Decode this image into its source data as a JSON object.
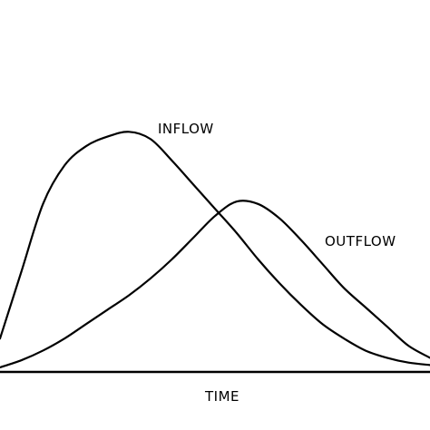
{
  "chart_data": {
    "type": "line",
    "title": "",
    "xlabel": "TIME",
    "ylabel": "",
    "grid": false,
    "legend": "none",
    "xlim": [
      0,
      100
    ],
    "ylim": [
      0,
      100
    ],
    "x": [
      0,
      5,
      10,
      15,
      20,
      25,
      30,
      35,
      40,
      45,
      50,
      55,
      60,
      65,
      70,
      75,
      80,
      85,
      90,
      95,
      100
    ],
    "series": [
      {
        "name": "INFLOW",
        "color": "#000000",
        "values": [
          12,
          40,
          68,
          84,
          92,
          96,
          98,
          95,
          86,
          76,
          66,
          56,
          45,
          35,
          26,
          18,
          12,
          7,
          4,
          2,
          1
        ]
      },
      {
        "name": "OUTFLOW",
        "color": "#000000",
        "values": [
          0,
          3,
          7,
          12,
          18,
          24,
          30,
          37,
          45,
          54,
          63,
          69,
          68,
          62,
          53,
          43,
          33,
          25,
          17,
          9,
          4
        ]
      }
    ]
  }
}
